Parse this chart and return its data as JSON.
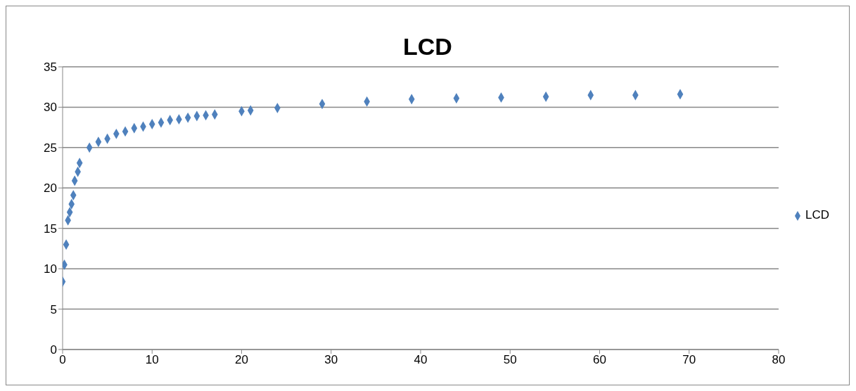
{
  "chart_data": {
    "type": "scatter",
    "title": "LCD",
    "x": [
      0,
      0.2,
      0.4,
      0.6,
      0.8,
      1,
      1.2,
      1.35,
      1.7,
      1.9,
      3,
      4,
      5,
      6,
      7,
      8,
      9,
      10,
      11,
      12,
      13,
      14,
      15,
      16,
      17,
      20,
      21,
      24,
      29,
      34,
      39,
      44,
      49,
      54,
      59,
      64,
      69
    ],
    "series": [
      {
        "name": "LCD",
        "color": "#4f81bd",
        "values": [
          8.4,
          10.5,
          13,
          16,
          17,
          18,
          19.1,
          20.9,
          22,
          23.1,
          25,
          25.7,
          26.1,
          26.7,
          27,
          27.4,
          27.6,
          27.9,
          28.1,
          28.4,
          28.5,
          28.7,
          28.9,
          29,
          29.1,
          29.5,
          29.6,
          29.9,
          30.4,
          30.7,
          31,
          31.1,
          31.2,
          31.3,
          31.5,
          31.5,
          31.6
        ]
      }
    ],
    "xlim": [
      0,
      80
    ],
    "xticks": [
      0,
      10,
      20,
      30,
      40,
      50,
      60,
      70,
      80
    ],
    "ylim": [
      0,
      35
    ],
    "yticks": [
      0,
      5,
      10,
      15,
      20,
      25,
      30,
      35
    ],
    "grid": "y",
    "legend": "right",
    "marker": "diamond"
  }
}
